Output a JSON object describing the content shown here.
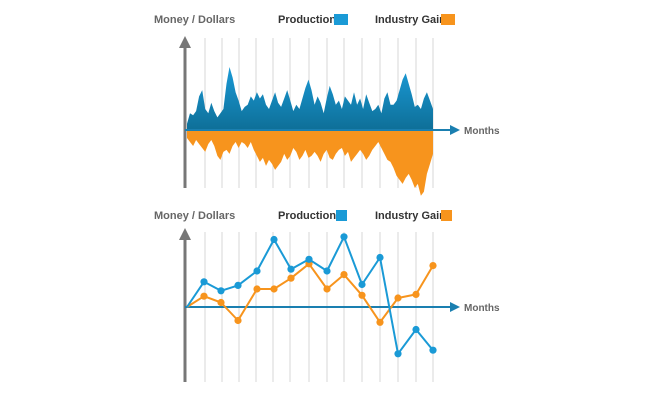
{
  "colors": {
    "production": "#1a9ad6",
    "production_dark": "#0e6f98",
    "industry_gain": "#f7941d",
    "axis": "#777777",
    "months_axis": "#1a7fb0",
    "grid": "#d7d7d7"
  },
  "chart_data": [
    {
      "type": "area",
      "ylabel": "Money / Dollars",
      "xlabel": "Months",
      "grid": "vertical",
      "legend": "top",
      "series": [
        {
          "name": "Production",
          "values": [
            3,
            8,
            7,
            9,
            16,
            19,
            10,
            8,
            13,
            9,
            6,
            8,
            10,
            22,
            30,
            25,
            18,
            14,
            9,
            11,
            12,
            16,
            14,
            18,
            15,
            17,
            12,
            10,
            14,
            18,
            13,
            11,
            15,
            19,
            14,
            9,
            12,
            10,
            15,
            20,
            24,
            19,
            12,
            16,
            13,
            8,
            15,
            21,
            17,
            12,
            14,
            10,
            16,
            14,
            12,
            18,
            12,
            15,
            10,
            17,
            13,
            9,
            10,
            12,
            8,
            15,
            18,
            12,
            12,
            14,
            19,
            24,
            27,
            22,
            17,
            11,
            12,
            10,
            15,
            18,
            14,
            10
          ]
        },
        {
          "name": "Industry Gain",
          "values": [
            -4,
            -6,
            -8,
            -5,
            -7,
            -9,
            -11,
            -7,
            -5,
            -8,
            -13,
            -15,
            -11,
            -10,
            -12,
            -8,
            -6,
            -9,
            -6,
            -7,
            -9,
            -6,
            -10,
            -13,
            -16,
            -14,
            -18,
            -15,
            -17,
            -20,
            -18,
            -16,
            -12,
            -15,
            -13,
            -9,
            -11,
            -15,
            -13,
            -10,
            -14,
            -13,
            -11,
            -13,
            -16,
            -12,
            -10,
            -14,
            -15,
            -12,
            -10,
            -9,
            -13,
            -11,
            -16,
            -14,
            -12,
            -10,
            -12,
            -15,
            -13,
            -10,
            -8,
            -6,
            -9,
            -12,
            -15,
            -16,
            -19,
            -23,
            -25,
            -27,
            -24,
            -22,
            -25,
            -29,
            -27,
            -33,
            -31,
            -22,
            -17,
            -12
          ]
        }
      ]
    },
    {
      "type": "line",
      "ylabel": "Money / Dollars",
      "xlabel": "Months",
      "grid": "vertical",
      "legend": "top",
      "series": [
        {
          "name": "Production",
          "values": [
            0,
            28,
            18,
            24,
            40,
            75,
            42,
            53,
            40,
            78,
            25,
            55,
            -52,
            -25,
            -48
          ]
        },
        {
          "name": "Industry Gain",
          "values": [
            0,
            12,
            5,
            -15,
            20,
            20,
            32,
            48,
            20,
            36,
            13,
            -17,
            10,
            14,
            46
          ]
        }
      ]
    }
  ]
}
